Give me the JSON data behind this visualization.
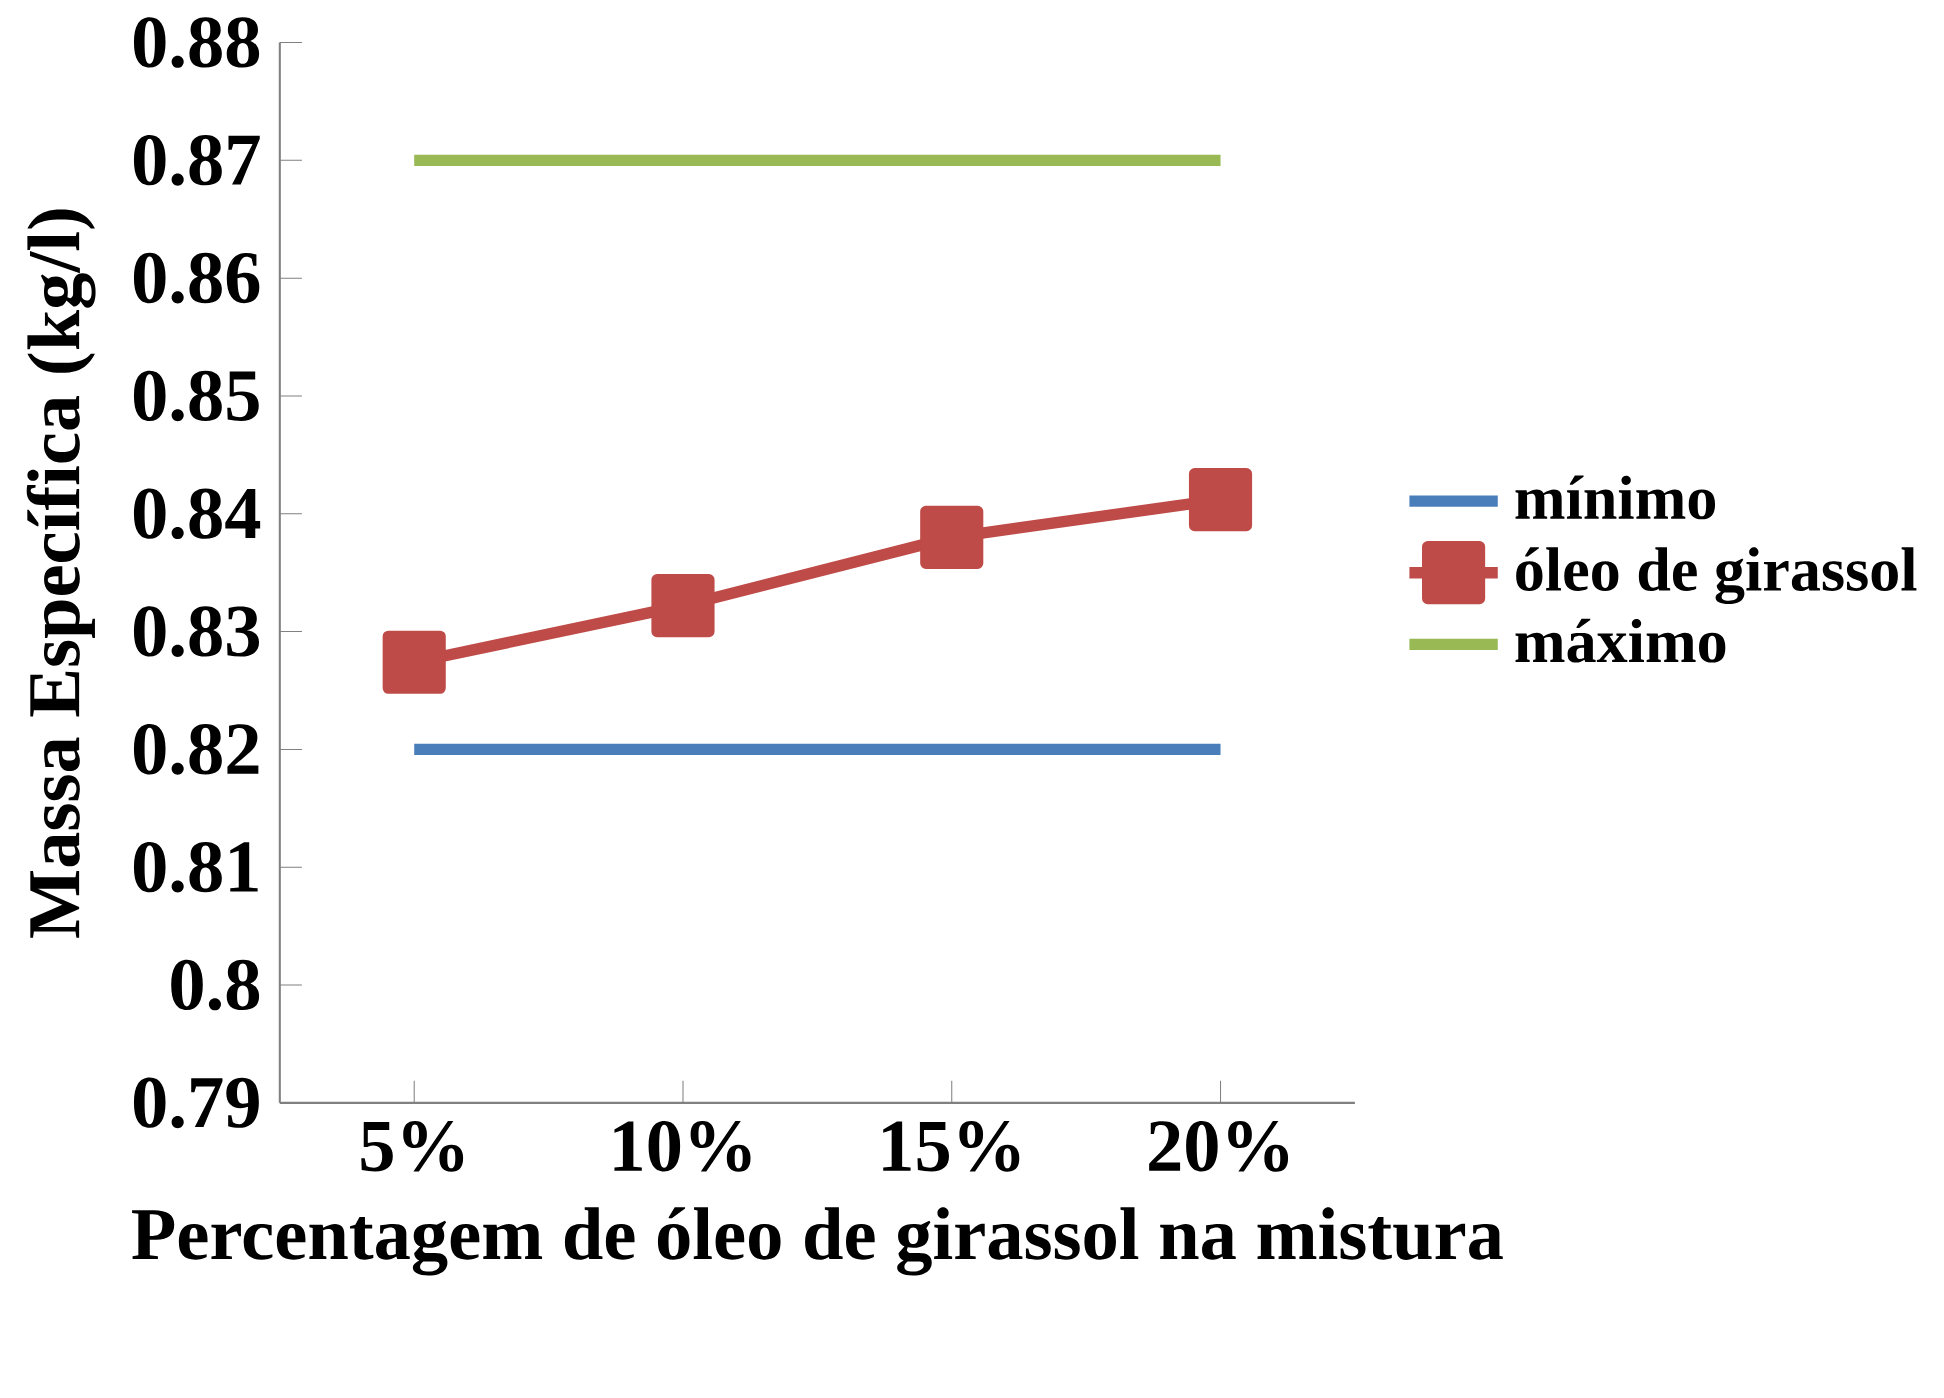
{
  "chart_data": {
    "type": "line",
    "xlabel": "Percentagem de óleo de girassol na mistura",
    "ylabel": "Massa Específica (kg/l)",
    "categories": [
      "5%",
      "10%",
      "15%",
      "20%"
    ],
    "series": [
      {
        "name": "mínimo",
        "color": "#4a7ebb",
        "values": [
          0.82,
          0.82,
          0.82,
          0.82
        ],
        "marker": "none"
      },
      {
        "name": "óleo de girassol",
        "color": "#be4b48",
        "values": [
          0.8274,
          0.8322,
          0.838,
          0.8412
        ],
        "marker": "square"
      },
      {
        "name": "máximo",
        "color": "#98b954",
        "values": [
          0.87,
          0.87,
          0.87,
          0.87
        ],
        "marker": "none"
      }
    ],
    "ylim": [
      0.79,
      0.88
    ],
    "yticks": [
      0.79,
      0.8,
      0.81,
      0.82,
      0.83,
      0.84,
      0.85,
      0.86,
      0.87,
      0.88
    ],
    "grid": false,
    "legend": "right",
    "line_style": "solid"
  }
}
